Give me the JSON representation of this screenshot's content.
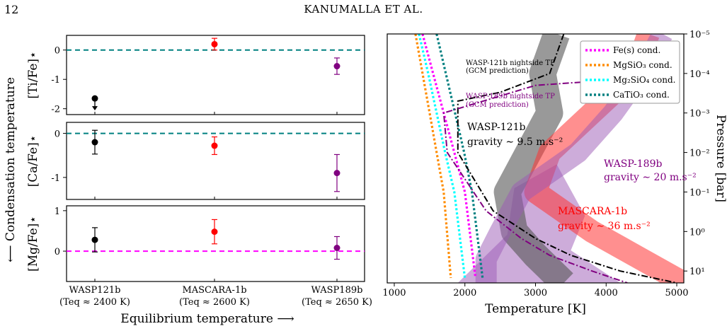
{
  "header": {
    "page_number": "12",
    "running_head": "KANUMALLA ET AL."
  },
  "colors": {
    "wasp121b": "#000000",
    "mascara1b": "#ff0000",
    "wasp189b": "#800080",
    "teal_ref": "#008080",
    "magenta_ref": "#ff00ff",
    "fe_cond": "#ff00ff",
    "mgsio3_cond": "#ff8c00",
    "mg2sio4_cond": "#00ffff",
    "catio3_cond": "#008080"
  },
  "chart_data": [
    {
      "type": "scatter",
      "panel": "Ti/Fe",
      "ylabel": "[Ti/Fe]⋆",
      "ylim": [
        -2.2,
        0.5
      ],
      "yticks": [
        "0",
        "-1",
        "-2"
      ],
      "reference_line": 0,
      "points": [
        {
          "planet": "WASP121b",
          "x": 0,
          "y": -1.65,
          "upper_limit": true
        },
        {
          "planet": "MASCARA-1b",
          "x": 1,
          "y": 0.2,
          "err": 0.2
        },
        {
          "planet": "WASP189b",
          "x": 2,
          "y": -0.55,
          "err": 0.28
        }
      ]
    },
    {
      "type": "scatter",
      "panel": "Ca/Fe",
      "ylabel": "[Ca/Fe]⋆",
      "ylim": [
        -1.5,
        0.25
      ],
      "yticks": [
        "0",
        "-1"
      ],
      "reference_line": 0,
      "points": [
        {
          "planet": "WASP121b",
          "x": 0,
          "y": -0.2,
          "err": 0.27
        },
        {
          "planet": "MASCARA-1b",
          "x": 1,
          "y": -0.28,
          "err": 0.2
        },
        {
          "planet": "WASP189b",
          "x": 2,
          "y": -0.9,
          "err": 0.42
        }
      ]
    },
    {
      "type": "scatter",
      "panel": "Mg/Fe",
      "ylabel": "[Mg/Fe]⋆",
      "ylim": [
        -0.75,
        1.12
      ],
      "yticks": [
        "1",
        "0"
      ],
      "reference_line": 0,
      "categories": [
        "WASP121b",
        "MASCARA-1b",
        "WASP189b"
      ],
      "category_sublabels": [
        "(Teq ≈ 2400 K)",
        "(Teq ≈ 2600 K)",
        "(Teq ≈ 2650 K)"
      ],
      "points": [
        {
          "planet": "WASP121b",
          "x": 0,
          "y": 0.28,
          "err": 0.3
        },
        {
          "planet": "MASCARA-1b",
          "x": 1,
          "y": 0.48,
          "err": 0.3
        },
        {
          "planet": "WASP189b",
          "x": 2,
          "y": 0.08,
          "err": 0.28
        }
      ]
    },
    {
      "type": "line",
      "panel": "TP profiles",
      "xlabel": "Temperature [K]",
      "ylabel": "Pressure [bar]",
      "xlim": [
        900,
        5100
      ],
      "ylim": [
        1e-05,
        20
      ],
      "y_log": true,
      "y_inverted": true,
      "xticks": [
        1000,
        2000,
        3000,
        4000,
        5000
      ],
      "yticks": [
        "10⁻⁵",
        "10⁻⁴",
        "10⁻³",
        "10⁻²",
        "10⁻¹",
        "10⁰",
        "10¹"
      ],
      "legend": {
        "placement": "top-right",
        "entries": [
          "Fe(s) cond.",
          "MgSiO₃ cond.",
          "Mg₂SiO₄ cond.",
          "CaTiO₃ cond."
        ]
      },
      "condensation_curves": [
        {
          "name": "Fe(s) cond.",
          "T": [
            1400,
            1550,
            1700,
            1850,
            2000,
            2150
          ],
          "P": [
            1e-05,
            0.0001,
            0.001,
            0.01,
            0.1,
            15
          ]
        },
        {
          "name": "MgSiO₃ cond.",
          "T": [
            1300,
            1400,
            1500,
            1600,
            1700,
            1800
          ],
          "P": [
            1e-05,
            0.0001,
            0.001,
            0.01,
            0.1,
            15
          ]
        },
        {
          "name": "Mg₂SiO₄ cond.",
          "T": [
            1350,
            1480,
            1600,
            1720,
            1850,
            2000
          ],
          "P": [
            1e-05,
            0.0001,
            0.001,
            0.01,
            0.1,
            15
          ]
        },
        {
          "name": "CaTiO₃ cond.",
          "T": [
            1600,
            1730,
            1860,
            1990,
            2100,
            2250
          ],
          "P": [
            1e-05,
            0.0001,
            0.001,
            0.01,
            0.1,
            15
          ]
        }
      ],
      "nightside_profiles": [
        {
          "name": "WASP-121b nightside TP",
          "T": [
            3400,
            3200,
            2500,
            1900,
            1900,
            2400,
            3000,
            3500,
            4200,
            5000
          ],
          "P": [
            1e-05,
            0.0001,
            0.0003,
            0.0005,
            0.01,
            0.3,
            1.5,
            4,
            10,
            20
          ]
        },
        {
          "name": "WASP-189b nightside TP",
          "T": [
            5000,
            4500,
            3000,
            1700,
            1750,
            2300,
            2800,
            3200,
            3800,
            4300
          ],
          "P": [
            0.0001,
            0.00013,
            0.0002,
            0.001,
            0.01,
            0.3,
            1.5,
            4,
            10,
            20
          ]
        }
      ],
      "dayside_bands": [
        {
          "name": "WASP-121b",
          "T": [
            3300,
            3100,
            3200,
            2900,
            2600,
            2700,
            3000,
            3400
          ],
          "P": [
            1e-05,
            0.0001,
            0.001,
            0.01,
            0.1,
            1,
            4,
            20
          ]
        },
        {
          "name": "MASCARA-1b",
          "T": [
            4600,
            4400,
            3800,
            3200,
            3000,
            3800,
            4500,
            5100
          ],
          "P": [
            1e-05,
            0.0001,
            0.001,
            0.01,
            0.1,
            1,
            5,
            20
          ]
        },
        {
          "name": "WASP-189b",
          "T": [
            4800,
            4500,
            4100,
            3600,
            2800,
            2500,
            2300,
            2300
          ],
          "P": [
            1e-05,
            0.0001,
            0.001,
            0.01,
            0.1,
            1,
            5,
            20
          ]
        }
      ],
      "annotations": {
        "w121_tp_line1": "WASP-121b nightside TP",
        "w121_tp_line2": "(GCM prediction)",
        "w189_tp_line1": "WASP-189b nightside TP",
        "w189_tp_line2": "(GCM prediction)",
        "w121_name": "WASP-121b",
        "w121_grav": "gravity ∼ 9.5 m.s⁻²",
        "w189_name": "WASP-189b",
        "w189_grav": "gravity ∼ 20 m.s⁻²",
        "m1_name": "MASCARA-1b",
        "m1_grav": "gravity ∼ 36 m.s⁻²"
      }
    }
  ],
  "axes_text": {
    "left_vertical": "⟵ Condensation temperature",
    "bottom_caption": "Equilibrium temperature ⟶"
  }
}
